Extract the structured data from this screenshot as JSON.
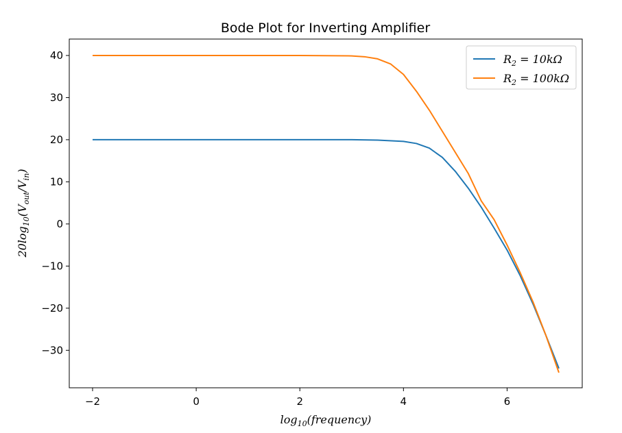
{
  "chart_data": {
    "type": "line",
    "title": "Bode Plot for Inverting Amplifier",
    "xlabel": "log10(frequency)",
    "xlabel_parts": {
      "base": "log",
      "sub": "10",
      "rest": "(frequency)"
    },
    "ylabel": "20log10(Vout/Vin)",
    "ylabel_parts": {
      "pre": "20log",
      "sub10": "10",
      "open": "(V",
      "sub_out": "out",
      "slash": "/V",
      "sub_in": "in",
      "close": ")"
    },
    "xlim": [
      -2.45,
      7.45
    ],
    "ylim": [
      -38.9,
      43.9
    ],
    "x_ticks": [
      -2,
      0,
      2,
      4,
      6
    ],
    "x_tick_labels": [
      "−2",
      "0",
      "2",
      "4",
      "6"
    ],
    "y_ticks": [
      -30,
      -20,
      -10,
      0,
      10,
      20,
      30,
      40
    ],
    "y_tick_labels": [
      "−30",
      "−20",
      "−10",
      "0",
      "10",
      "20",
      "30",
      "40"
    ],
    "grid": false,
    "legend_position": "top-right",
    "series": [
      {
        "name": "R2 = 10kΩ",
        "label_parts": {
          "r": "R",
          "sub": "2",
          "rest": " = 10kΩ"
        },
        "color": "#1f77b4",
        "x": [
          -2,
          0,
          2,
          3,
          3.5,
          4,
          4.25,
          4.5,
          4.75,
          5,
          5.25,
          5.5,
          5.75,
          6,
          6.25,
          6.5,
          6.75,
          7
        ],
        "y": [
          20,
          20,
          20,
          20,
          19.9,
          19.6,
          19.1,
          18,
          15.8,
          12.5,
          8.5,
          4,
          -1,
          -6.2,
          -12.2,
          -19,
          -26.5,
          -34.3
        ]
      },
      {
        "name": "R2 = 100kΩ",
        "label_parts": {
          "r": "R",
          "sub": "2",
          "rest": " = 100kΩ"
        },
        "color": "#ff7f0e",
        "x": [
          -2,
          0,
          2,
          3,
          3.25,
          3.5,
          3.75,
          4,
          4.25,
          4.5,
          4.75,
          5,
          5.25,
          5.5,
          5.75,
          6,
          6.25,
          6.5,
          6.75,
          7
        ],
        "y": [
          40,
          40,
          40,
          39.9,
          39.7,
          39.2,
          38,
          35.5,
          31.5,
          27,
          22,
          17,
          12,
          5.5,
          1,
          -5,
          -11.5,
          -18.5,
          -26.5,
          -35.3
        ]
      }
    ]
  }
}
